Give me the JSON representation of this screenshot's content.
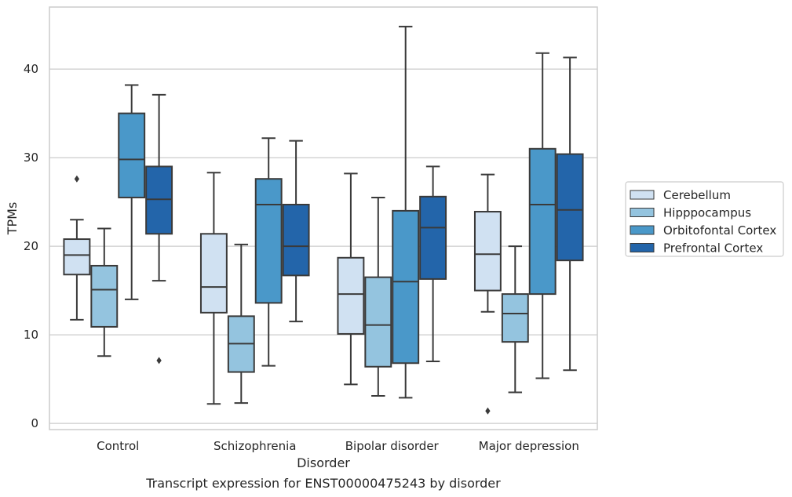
{
  "chart_data": {
    "type": "boxplot",
    "caption": "Transcript expression for ENST00000475243 by disorder",
    "xlabel": "Disorder",
    "ylabel": "TPMs",
    "ylim": [
      -0.7,
      47
    ],
    "yticks": [
      0,
      10,
      20,
      30,
      40
    ],
    "grid": "horizontal",
    "legend_position": "right",
    "categories": [
      "Control",
      "Schizophrenia",
      "Bipolar disorder",
      "Major depression"
    ],
    "series": [
      {
        "name": "Cerebellum",
        "color": "#d0e1f2",
        "boxes": [
          {
            "whisker_low": 11.7,
            "q1": 16.8,
            "median": 19.0,
            "q3": 20.8,
            "whisker_high": 23.0,
            "outliers": [
              27.6
            ]
          },
          {
            "whisker_low": 2.2,
            "q1": 12.5,
            "median": 15.4,
            "q3": 21.4,
            "whisker_high": 28.3,
            "outliers": []
          },
          {
            "whisker_low": 4.4,
            "q1": 10.1,
            "median": 14.6,
            "q3": 18.7,
            "whisker_high": 28.2,
            "outliers": []
          },
          {
            "whisker_low": 12.6,
            "q1": 15.0,
            "median": 19.1,
            "q3": 23.9,
            "whisker_high": 28.1,
            "outliers": [
              1.4
            ]
          }
        ]
      },
      {
        "name": "Hipppocampus",
        "color": "#94c4df",
        "boxes": [
          {
            "whisker_low": 7.6,
            "q1": 10.9,
            "median": 15.1,
            "q3": 17.8,
            "whisker_high": 22.0,
            "outliers": []
          },
          {
            "whisker_low": 2.3,
            "q1": 5.8,
            "median": 9.0,
            "q3": 12.1,
            "whisker_high": 20.2,
            "outliers": []
          },
          {
            "whisker_low": 3.1,
            "q1": 6.4,
            "median": 11.1,
            "q3": 16.5,
            "whisker_high": 25.5,
            "outliers": []
          },
          {
            "whisker_low": 3.5,
            "q1": 9.2,
            "median": 12.4,
            "q3": 14.6,
            "whisker_high": 20.0,
            "outliers": []
          }
        ]
      },
      {
        "name": "Orbitofontal Cortex",
        "color": "#4a98c9",
        "boxes": [
          {
            "whisker_low": 14.0,
            "q1": 25.5,
            "median": 29.8,
            "q3": 35.0,
            "whisker_high": 38.2,
            "outliers": []
          },
          {
            "whisker_low": 6.5,
            "q1": 13.6,
            "median": 24.7,
            "q3": 27.6,
            "whisker_high": 32.2,
            "outliers": []
          },
          {
            "whisker_low": 2.9,
            "q1": 6.8,
            "median": 16.0,
            "q3": 24.0,
            "whisker_high": 44.8,
            "outliers": []
          },
          {
            "whisker_low": 5.1,
            "q1": 14.6,
            "median": 24.7,
            "q3": 31.0,
            "whisker_high": 41.8,
            "outliers": []
          }
        ]
      },
      {
        "name": "Prefrontal Cortex",
        "color": "#2365aa",
        "boxes": [
          {
            "whisker_low": 16.1,
            "q1": 21.4,
            "median": 25.3,
            "q3": 29.0,
            "whisker_high": 37.1,
            "outliers": [
              7.1
            ]
          },
          {
            "whisker_low": 11.5,
            "q1": 16.7,
            "median": 20.0,
            "q3": 24.7,
            "whisker_high": 31.9,
            "outliers": []
          },
          {
            "whisker_low": 7.0,
            "q1": 16.3,
            "median": 22.1,
            "q3": 25.6,
            "whisker_high": 29.0,
            "outliers": []
          },
          {
            "whisker_low": 6.0,
            "q1": 18.4,
            "median": 24.1,
            "q3": 30.4,
            "whisker_high": 41.3,
            "outliers": []
          }
        ]
      }
    ]
  }
}
